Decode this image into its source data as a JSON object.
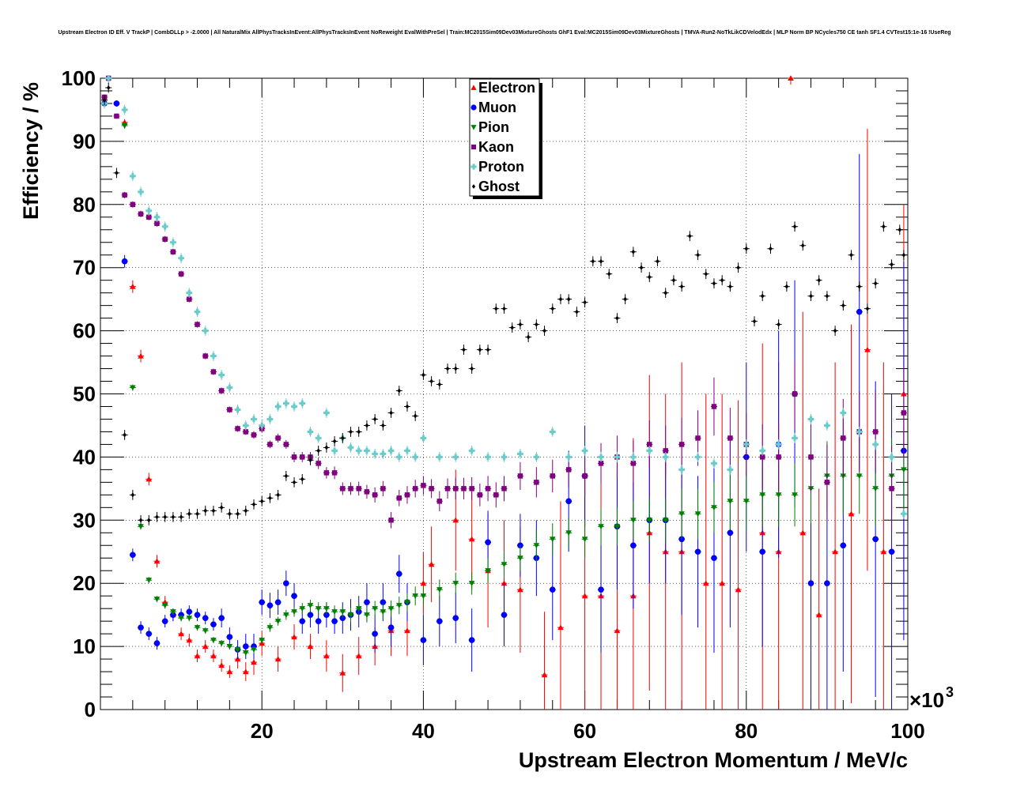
{
  "chart_data": {
    "type": "scatter",
    "title": "Upstream Electron ID Eff. V TrackP | CombDLLp > -2.0000 | All NaturalMix AllPhysTracksInEvent:AllPhysTracksInEvent NoReweight EvalWithPreSel | Train:MC2015Sim09Dev03MixtureGhosts GhF1 Eval:MC2015Sim09Dev03MixtureGhosts | TMVA-Run2-NoTkLikCDVelodEdx | MLP Norm BP NCycles750 CE tanh SF1.4 CVTest15:1e-16 !UseReg",
    "xlabel": "Upstream Electron Momentum / MeV/c",
    "ylabel": "Efficiency / %",
    "x_exponent_base": "×10",
    "x_exponent": "3",
    "xlim": [
      0,
      100
    ],
    "ylim": [
      0,
      100
    ],
    "x_ticks": [
      "20",
      "40",
      "60",
      "80",
      "100"
    ],
    "y_ticks": [
      "0",
      "10",
      "20",
      "30",
      "40",
      "50",
      "60",
      "70",
      "80",
      "90",
      "100"
    ],
    "grid": true,
    "legend_position": "top-center",
    "series": [
      {
        "name": "Electron",
        "color": "#ff0000",
        "marker": "triangle-up",
        "x": [
          0.5,
          3,
          4,
          5,
          6,
          7,
          8,
          9,
          10,
          11,
          12,
          13,
          14,
          15,
          16,
          17,
          18,
          19,
          20,
          22,
          24,
          26,
          28,
          30,
          32,
          34,
          36,
          38,
          40,
          41,
          44,
          46,
          48,
          50,
          52,
          55,
          57,
          60,
          62,
          64,
          66,
          68,
          70,
          72,
          75,
          77,
          79,
          82,
          84,
          85.5,
          87,
          89,
          91,
          93,
          95,
          97,
          99.5
        ],
        "y": [
          97,
          93,
          67,
          56,
          36.5,
          23.5,
          17,
          15,
          12,
          11,
          8.5,
          10,
          8.5,
          7,
          6,
          8,
          6,
          7.5,
          10.5,
          8,
          11.5,
          10,
          8.5,
          5.8,
          8.5,
          10,
          12.5,
          12.5,
          20,
          23,
          30,
          27,
          22,
          20,
          19,
          5.5,
          13,
          18,
          18,
          12.5,
          18,
          28,
          25,
          25,
          20,
          20,
          19,
          28,
          25,
          100,
          28,
          15,
          25,
          31,
          57,
          25,
          50
        ],
        "err": [
          0.3,
          0.5,
          1,
          1,
          1,
          1,
          1,
          1,
          1,
          1,
          1,
          1,
          1,
          1,
          1,
          1.5,
          1.5,
          2,
          2,
          2,
          2,
          2,
          2.5,
          3,
          3,
          3,
          4,
          4,
          5,
          6,
          8,
          8,
          9,
          10,
          10,
          10,
          20,
          20,
          20,
          25,
          25,
          25,
          25,
          30,
          30,
          30,
          30,
          30,
          30,
          1,
          35,
          20,
          30,
          30,
          35,
          30,
          30
        ]
      },
      {
        "name": "Muon",
        "color": "#0000ff",
        "marker": "circle",
        "x": [
          0.5,
          1,
          2,
          3,
          4,
          5,
          6,
          7,
          8,
          9,
          10,
          11,
          12,
          13,
          14,
          15,
          16,
          17,
          18,
          19,
          20,
          21,
          22,
          23,
          24,
          25,
          26,
          27,
          28,
          29,
          30,
          31,
          32,
          33,
          34,
          35,
          36,
          37,
          38,
          40,
          42,
          44,
          46,
          48,
          50,
          52,
          54,
          56,
          58,
          60,
          62,
          64,
          66,
          68,
          70,
          72,
          74,
          76,
          78,
          80,
          82,
          84,
          86,
          88,
          90,
          92,
          94,
          96,
          98,
          99.5
        ],
        "y": [
          96,
          100,
          96,
          71,
          24.5,
          13,
          12,
          10.5,
          14,
          15,
          15,
          15.5,
          15,
          14.5,
          13.5,
          14.5,
          11.5,
          9.5,
          10,
          10,
          17,
          16.5,
          17,
          20,
          18,
          14,
          15,
          14,
          15,
          14,
          14.5,
          15,
          15.5,
          17,
          12,
          17,
          13,
          21.5,
          17,
          11,
          14,
          14.5,
          11,
          26.5,
          15,
          26,
          24,
          19,
          33,
          37,
          19,
          29,
          26,
          30,
          30,
          27,
          25,
          24,
          28,
          40,
          25,
          42,
          50,
          20,
          20,
          26,
          63,
          27,
          25,
          41
        ],
        "err": [
          0.5,
          0.5,
          0.5,
          1,
          1,
          1,
          1,
          1,
          1,
          1,
          1,
          1,
          1,
          1,
          1,
          1.5,
          1.5,
          1.5,
          2,
          2,
          2,
          2,
          2,
          2,
          2,
          2,
          2,
          2,
          2,
          2,
          2.5,
          2.5,
          2.5,
          3,
          3,
          3,
          3,
          3,
          3,
          4,
          4,
          4,
          5,
          5,
          5,
          5,
          6,
          8,
          8,
          8,
          10,
          10,
          10,
          10,
          10,
          12,
          12,
          15,
          15,
          15,
          15,
          18,
          18,
          20,
          20,
          20,
          25,
          25,
          25,
          30
        ]
      },
      {
        "name": "Pion",
        "color": "#008000",
        "marker": "triangle-down",
        "x": [
          0.5,
          3,
          4,
          5,
          6,
          7,
          8,
          9,
          10,
          11,
          12,
          13,
          14,
          15,
          16,
          17,
          18,
          19,
          20,
          21,
          22,
          23,
          24,
          25,
          26,
          27,
          28,
          29,
          30,
          31,
          32,
          33,
          34,
          35,
          36,
          37,
          38,
          39,
          40,
          42,
          44,
          46,
          48,
          50,
          52,
          54,
          56,
          58,
          60,
          62,
          64,
          66,
          68,
          70,
          72,
          74,
          76,
          78,
          80,
          82,
          84,
          86,
          88,
          90,
          92,
          94,
          96,
          98,
          99.5
        ],
        "y": [
          97,
          92.5,
          51,
          29,
          20.5,
          17.5,
          16.5,
          15.5,
          14.5,
          14.5,
          13,
          12.5,
          11,
          10.5,
          10,
          9.5,
          9,
          9.5,
          11,
          13,
          14,
          15,
          15.5,
          16,
          16.5,
          16,
          16,
          15.5,
          15.5,
          15,
          16,
          15,
          16,
          15.5,
          16,
          16.5,
          17,
          18,
          18,
          19,
          20,
          20,
          22,
          23,
          24,
          26,
          27,
          28,
          27,
          29,
          29,
          30,
          30,
          30,
          31,
          31,
          32,
          33,
          33,
          34,
          34,
          34,
          35,
          37,
          37,
          37,
          35,
          37,
          38
        ],
        "err": [
          0.3,
          0.5,
          0.5,
          0.5,
          0.5,
          0.5,
          0.5,
          0.5,
          0.5,
          0.5,
          0.5,
          0.5,
          0.5,
          0.5,
          0.5,
          0.5,
          0.5,
          0.6,
          0.6,
          0.7,
          0.7,
          0.8,
          0.8,
          0.9,
          0.9,
          1,
          1,
          1,
          1,
          1.1,
          1.1,
          1.2,
          1.2,
          1.3,
          1.3,
          1.4,
          1.4,
          1.5,
          1.5,
          1.6,
          1.7,
          1.8,
          2,
          2,
          2,
          2.5,
          2.5,
          2.5,
          3,
          3,
          3,
          3,
          3.5,
          3.5,
          4,
          4,
          4,
          4.5,
          4.5,
          5,
          5,
          5,
          5.5,
          5.5,
          6,
          6,
          6,
          6,
          7
        ]
      },
      {
        "name": "Kaon",
        "color": "#800080",
        "marker": "square",
        "x": [
          0.5,
          1,
          2,
          3,
          4,
          5,
          6,
          7,
          8,
          9,
          10,
          11,
          12,
          13,
          14,
          15,
          16,
          17,
          18,
          19,
          20,
          21,
          22,
          23,
          24,
          25,
          26,
          27,
          28,
          29,
          30,
          31,
          32,
          33,
          34,
          35,
          36,
          37,
          38,
          39,
          40,
          41,
          42,
          43,
          44,
          45,
          46,
          47,
          48,
          49,
          50,
          52,
          54,
          56,
          58,
          60,
          62,
          64,
          66,
          68,
          70,
          72,
          74,
          76,
          78,
          80,
          82,
          84,
          86,
          88,
          90,
          92,
          94,
          96,
          98,
          99.5
        ],
        "y": [
          97,
          100,
          94,
          81.5,
          80,
          78.5,
          78,
          77,
          74.5,
          72.5,
          69,
          65,
          61,
          56,
          53.5,
          50.5,
          47.5,
          44.5,
          44,
          43.5,
          44.5,
          42,
          43,
          42,
          40,
          40,
          40,
          39,
          37.5,
          37.5,
          35,
          35,
          35,
          34.5,
          34,
          35,
          30,
          33.5,
          34,
          35,
          35.5,
          35,
          33,
          35,
          35,
          35,
          35,
          34,
          35,
          34,
          35,
          37,
          36,
          37,
          38,
          37,
          39,
          40,
          39,
          42,
          41,
          42,
          43,
          48,
          43,
          42,
          40,
          40,
          50,
          40,
          36,
          43,
          44,
          44,
          35,
          47
        ],
        "err": [
          0.3,
          0.3,
          0.4,
          0.5,
          0.5,
          0.5,
          0.5,
          0.5,
          0.5,
          0.5,
          0.5,
          0.5,
          0.5,
          0.5,
          0.5,
          0.5,
          0.5,
          0.5,
          0.5,
          0.6,
          0.6,
          0.6,
          0.7,
          0.7,
          0.8,
          0.8,
          0.8,
          0.9,
          0.9,
          1,
          1,
          1,
          1.1,
          1.1,
          1.2,
          1.2,
          1.3,
          1.3,
          1.4,
          1.4,
          1.5,
          1.5,
          1.6,
          1.6,
          1.7,
          1.7,
          1.8,
          1.8,
          2,
          2,
          2,
          2.2,
          2.4,
          2.6,
          2.8,
          3,
          3.2,
          3.4,
          3.6,
          3.8,
          4,
          4.2,
          4.4,
          4.6,
          4.8,
          5,
          5.2,
          5.4,
          5.6,
          5.8,
          6,
          6.2,
          6.4,
          6.6,
          6.8,
          7
        ]
      },
      {
        "name": "Proton",
        "color": "#66cccc",
        "marker": "cross",
        "x": [
          0.5,
          1,
          3,
          4,
          5,
          6,
          7,
          8,
          9,
          10,
          11,
          12,
          13,
          14,
          15,
          16,
          17,
          18,
          19,
          20,
          21,
          22,
          23,
          24,
          25,
          26,
          27,
          28,
          29,
          30,
          31,
          32,
          33,
          34,
          35,
          36,
          37,
          38,
          39,
          40,
          42,
          44,
          46,
          48,
          50,
          52,
          54,
          56,
          58,
          60,
          62,
          64,
          66,
          68,
          70,
          72,
          74,
          76,
          78,
          80,
          82,
          84,
          86,
          88,
          90,
          92,
          94,
          96,
          98,
          99.5
        ],
        "y": [
          96,
          100,
          95,
          84.5,
          82,
          79,
          78,
          76.5,
          74,
          71.5,
          66,
          63,
          60,
          56,
          53,
          51,
          47.5,
          45,
          46,
          45,
          46,
          48,
          48.5,
          48,
          48.5,
          44,
          43,
          47,
          41,
          43,
          41.5,
          41,
          41,
          40.5,
          40.5,
          41,
          40,
          41,
          40,
          43,
          40,
          40,
          41,
          40,
          40,
          40.5,
          40,
          44,
          40,
          41,
          40,
          40,
          40,
          41,
          40,
          38,
          40,
          39,
          38,
          42,
          41,
          42,
          43,
          46,
          45,
          47,
          44,
          42,
          40,
          31
        ]
      },
      {
        "name": "Ghost",
        "color": "#000000",
        "marker": "diamond",
        "x": [
          0.5,
          1,
          2,
          3,
          4,
          5,
          6,
          7,
          8,
          9,
          10,
          11,
          12,
          13,
          14,
          15,
          16,
          17,
          18,
          19,
          20,
          21,
          22,
          23,
          24,
          25,
          26,
          27,
          28,
          29,
          30,
          31,
          32,
          33,
          34,
          35,
          36,
          37,
          38,
          39,
          40,
          41,
          42,
          43,
          44,
          45,
          46,
          47,
          48,
          49,
          50,
          51,
          52,
          53,
          54,
          55,
          56,
          57,
          58,
          59,
          60,
          61,
          62,
          63,
          64,
          65,
          66,
          67,
          68,
          69,
          70,
          71,
          72,
          73,
          74,
          75,
          76,
          77,
          78,
          79,
          80,
          81,
          82,
          83,
          84,
          85,
          86,
          87,
          88,
          89,
          90,
          91,
          92,
          93,
          94,
          95,
          96,
          97,
          98,
          99,
          99.5
        ],
        "y": [
          96.5,
          98.5,
          85,
          43.5,
          34,
          30,
          30,
          30.5,
          30.5,
          30.5,
          30.5,
          31,
          31,
          31.5,
          31.5,
          32,
          31,
          31,
          31.5,
          32.5,
          33,
          33.5,
          34,
          37,
          36,
          36.5,
          39.5,
          41,
          41.5,
          42.5,
          43,
          44,
          44,
          45,
          46,
          45,
          47,
          50.5,
          48,
          46.5,
          53,
          52,
          51.5,
          54,
          54,
          57,
          54,
          57,
          57,
          63.5,
          63.5,
          60.5,
          61,
          59,
          61,
          60,
          63.5,
          65,
          65,
          63,
          64.5,
          71,
          71,
          69,
          62,
          65,
          72.5,
          70,
          68.5,
          71,
          66,
          68,
          67,
          75,
          72,
          69,
          67.5,
          68,
          67,
          70,
          73,
          61.5,
          65.5,
          73,
          61,
          67,
          76.5,
          73.5,
          65.5,
          68,
          65.5,
          60,
          64,
          72,
          67,
          63.5,
          67.5,
          76.5,
          70.5,
          76,
          72
        ]
      }
    ]
  },
  "legend": {
    "items": [
      {
        "label": "Electron",
        "color": "#ff0000",
        "marker": "triangle-up"
      },
      {
        "label": "Muon",
        "color": "#0000ff",
        "marker": "circle"
      },
      {
        "label": "Pion",
        "color": "#008000",
        "marker": "triangle-down"
      },
      {
        "label": "Kaon",
        "color": "#800080",
        "marker": "square"
      },
      {
        "label": "Proton",
        "color": "#66cccc",
        "marker": "cross"
      },
      {
        "label": "Ghost",
        "color": "#000000",
        "marker": "diamond"
      }
    ]
  }
}
